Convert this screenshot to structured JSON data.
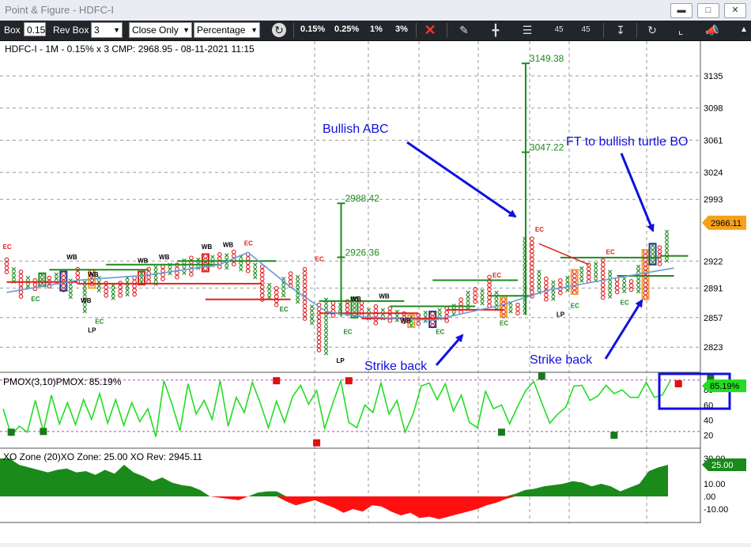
{
  "window": {
    "title": "Point & Figure - HDFC-I"
  },
  "toolbar": {
    "box_label": "Box",
    "box_value": "0.15",
    "revbox_label": "Rev Box",
    "revbox_value": "3",
    "price_mode": "Close Only",
    "scale_mode": "Percentage",
    "pct_buttons": [
      "0.15%",
      "0.25%",
      "1%",
      "3%"
    ],
    "icon_45a": "45",
    "icon_45b": "45"
  },
  "colors": {
    "bull": "#1e8a1e",
    "bear": "#e02020",
    "annotation": "#1010e0",
    "osc": "#22dd22",
    "zone_pos": "#1a8a1a",
    "zone_neg": "#ff1010",
    "ma": "#6c9ad8"
  },
  "chart_data": [
    {
      "type": "point-and-figure",
      "header": "HDFC-I - 1M - 0.15% x 3 CMP: 2968.95 - 08-11-2021 11:15",
      "yticks": [
        3135,
        3098,
        3061,
        3024,
        2993,
        2922,
        2891,
        2857,
        2823
      ],
      "ylim": [
        2795,
        3175
      ],
      "last_price": "2966.11",
      "columns": [
        {
          "t": "O",
          "hi": 2926,
          "lo": 2905
        },
        {
          "t": "X",
          "hi": 2915,
          "lo": 2896
        },
        {
          "t": "O",
          "hi": 2912,
          "lo": 2880
        },
        {
          "t": "X",
          "hi": 2905,
          "lo": 2890
        },
        {
          "t": "O",
          "hi": 2902,
          "lo": 2886
        },
        {
          "t": "X",
          "hi": 2908,
          "lo": 2893
        },
        {
          "t": "O",
          "hi": 2905,
          "lo": 2891
        },
        {
          "t": "X",
          "hi": 2909,
          "lo": 2894
        },
        {
          "t": "O",
          "hi": 2910,
          "lo": 2888
        },
        {
          "t": "X",
          "hi": 2902,
          "lo": 2878
        },
        {
          "t": "O",
          "hi": 2915,
          "lo": 2895
        },
        {
          "t": "X",
          "hi": 2900,
          "lo": 2862
        },
        {
          "t": "O",
          "hi": 2912,
          "lo": 2891
        },
        {
          "t": "X",
          "hi": 2905,
          "lo": 2886
        },
        {
          "t": "O",
          "hi": 2899,
          "lo": 2882
        },
        {
          "t": "X",
          "hi": 2896,
          "lo": 2876
        },
        {
          "t": "O",
          "hi": 2899,
          "lo": 2880
        },
        {
          "t": "X",
          "hi": 2905,
          "lo": 2880
        },
        {
          "t": "O",
          "hi": 2905,
          "lo": 2880
        },
        {
          "t": "X",
          "hi": 2910,
          "lo": 2895
        },
        {
          "t": "O",
          "hi": 2915,
          "lo": 2897
        },
        {
          "t": "X",
          "hi": 2917,
          "lo": 2894
        },
        {
          "t": "O",
          "hi": 2918,
          "lo": 2899
        },
        {
          "t": "X",
          "hi": 2920,
          "lo": 2905
        },
        {
          "t": "O",
          "hi": 2920,
          "lo": 2903
        },
        {
          "t": "X",
          "hi": 2925,
          "lo": 2905
        },
        {
          "t": "O",
          "hi": 2928,
          "lo": 2906
        },
        {
          "t": "X",
          "hi": 2926,
          "lo": 2910
        },
        {
          "t": "O",
          "hi": 2930,
          "lo": 2910
        },
        {
          "t": "X",
          "hi": 2929,
          "lo": 2913
        },
        {
          "t": "O",
          "hi": 2932,
          "lo": 2913
        },
        {
          "t": "X",
          "hi": 2931,
          "lo": 2913
        },
        {
          "t": "O",
          "hi": 2935,
          "lo": 2915
        },
        {
          "t": "X",
          "hi": 2929,
          "lo": 2912
        },
        {
          "t": "O",
          "hi": 2932,
          "lo": 2908
        },
        {
          "t": "X",
          "hi": 2920,
          "lo": 2900
        },
        {
          "t": "O",
          "hi": 2918,
          "lo": 2876
        },
        {
          "t": "X",
          "hi": 2897,
          "lo": 2880
        },
        {
          "t": "O",
          "hi": 2893,
          "lo": 2871
        },
        {
          "t": "X",
          "hi": 2904,
          "lo": 2878
        },
        {
          "t": "O",
          "hi": 2910,
          "lo": 2892
        },
        {
          "t": "X",
          "hi": 2906,
          "lo": 2873
        },
        {
          "t": "O",
          "hi": 2915,
          "lo": 2852
        },
        {
          "t": "X",
          "hi": 2872,
          "lo": 2846
        },
        {
          "t": "O",
          "hi": 2874,
          "lo": 2818
        },
        {
          "t": "X",
          "hi": 2880,
          "lo": 2812
        },
        {
          "t": "O",
          "hi": 2876,
          "lo": 2856
        },
        {
          "t": "X",
          "hi": 2874,
          "lo": 2858
        },
        {
          "t": "O",
          "hi": 2878,
          "lo": 2858
        },
        {
          "t": "X",
          "hi": 2880,
          "lo": 2857
        },
        {
          "t": "O",
          "hi": 2876,
          "lo": 2855
        },
        {
          "t": "X",
          "hi": 2868,
          "lo": 2852
        },
        {
          "t": "O",
          "hi": 2872,
          "lo": 2850
        },
        {
          "t": "X",
          "hi": 2868,
          "lo": 2853
        },
        {
          "t": "O",
          "hi": 2870,
          "lo": 2851
        },
        {
          "t": "X",
          "hi": 2866,
          "lo": 2852
        },
        {
          "t": "O",
          "hi": 2864,
          "lo": 2848
        },
        {
          "t": "X",
          "hi": 2860,
          "lo": 2846
        },
        {
          "t": "O",
          "hi": 2862,
          "lo": 2846
        },
        {
          "t": "X",
          "hi": 2865,
          "lo": 2850
        },
        {
          "t": "O",
          "hi": 2864,
          "lo": 2846
        },
        {
          "t": "X",
          "hi": 2868,
          "lo": 2853
        },
        {
          "t": "O",
          "hi": 2870,
          "lo": 2852
        },
        {
          "t": "X",
          "hi": 2873,
          "lo": 2860
        },
        {
          "t": "O",
          "hi": 2880,
          "lo": 2862
        },
        {
          "t": "X",
          "hi": 2888,
          "lo": 2865
        },
        {
          "t": "O",
          "hi": 2892,
          "lo": 2873
        },
        {
          "t": "X",
          "hi": 2890,
          "lo": 2872
        },
        {
          "t": "O",
          "hi": 2906,
          "lo": 2868
        },
        {
          "t": "X",
          "hi": 2888,
          "lo": 2864
        },
        {
          "t": "O",
          "hi": 2880,
          "lo": 2858
        },
        {
          "t": "X",
          "hi": 2876,
          "lo": 2860
        },
        {
          "t": "O",
          "hi": 2874,
          "lo": 2858
        },
        {
          "t": "X",
          "hi": 2950,
          "lo": 2860
        },
        {
          "t": "O",
          "hi": 2950,
          "lo": 2878
        },
        {
          "t": "X",
          "hi": 2912,
          "lo": 2882
        },
        {
          "t": "O",
          "hi": 2904,
          "lo": 2875
        },
        {
          "t": "X",
          "hi": 2900,
          "lo": 2878
        },
        {
          "t": "O",
          "hi": 2902,
          "lo": 2884
        },
        {
          "t": "X",
          "hi": 2905,
          "lo": 2884
        },
        {
          "t": "O",
          "hi": 2912,
          "lo": 2884
        },
        {
          "t": "X",
          "hi": 2916,
          "lo": 2895
        },
        {
          "t": "O",
          "hi": 2920,
          "lo": 2895
        },
        {
          "t": "X",
          "hi": 2921,
          "lo": 2898
        },
        {
          "t": "O",
          "hi": 2925,
          "lo": 2880
        },
        {
          "t": "X",
          "hi": 2912,
          "lo": 2880
        },
        {
          "t": "O",
          "hi": 2903,
          "lo": 2883
        },
        {
          "t": "X",
          "hi": 2904,
          "lo": 2886
        },
        {
          "t": "O",
          "hi": 2901,
          "lo": 2886
        },
        {
          "t": "X",
          "hi": 2918,
          "lo": 2885
        },
        {
          "t": "O",
          "hi": 2935,
          "lo": 2878
        },
        {
          "t": "X",
          "hi": 2942,
          "lo": 2918
        },
        {
          "t": "O",
          "hi": 2940,
          "lo": 2918
        },
        {
          "t": "X",
          "hi": 2958,
          "lo": 2918
        }
      ],
      "ma_line": [
        [
          0,
          2886
        ],
        [
          10,
          2900
        ],
        [
          20,
          2906
        ],
        [
          30,
          2918
        ],
        [
          34,
          2932
        ],
        [
          40,
          2892
        ],
        [
          45,
          2864
        ],
        [
          50,
          2858
        ],
        [
          60,
          2854
        ],
        [
          70,
          2872
        ],
        [
          76,
          2888
        ],
        [
          84,
          2900
        ],
        [
          94,
          2914
        ]
      ],
      "boxed_columns": [
        {
          "col": 5,
          "color": "#1e8a1e"
        },
        {
          "col": 8,
          "color": "#1e3a8a"
        },
        {
          "col": 12,
          "color": "#f0a030"
        },
        {
          "col": 19,
          "color": "#e02020"
        },
        {
          "col": 28,
          "color": "#e02020"
        },
        {
          "col": 49,
          "color": "#1e8a1e"
        },
        {
          "col": 57,
          "color": "#f0a030"
        },
        {
          "col": 60,
          "color": "#1e3a8a"
        },
        {
          "col": 70,
          "color": "#f0a030"
        },
        {
          "col": 80,
          "color": "#f0a030"
        },
        {
          "col": 90,
          "color": "#f0a030"
        },
        {
          "col": 91,
          "color": "#1e3a8a"
        }
      ],
      "green_levels": [
        {
          "x0": 6,
          "x1": 20,
          "y": 2912
        },
        {
          "x0": 14,
          "x1": 30,
          "y": 2918
        },
        {
          "x0": 24,
          "x1": 38,
          "y": 2922
        },
        {
          "x0": 44,
          "x1": 56,
          "y": 2876
        },
        {
          "x0": 54,
          "x1": 66,
          "y": 2870
        },
        {
          "x0": 60,
          "x1": 72,
          "y": 2900
        },
        {
          "x0": 68,
          "x1": 74,
          "y": 2882
        },
        {
          "x0": 78,
          "x1": 92,
          "y": 2926
        },
        {
          "x0": 86,
          "x1": 94,
          "y": 2905
        },
        {
          "x0": 92,
          "x1": 96,
          "y": 2928
        }
      ],
      "red_levels": [
        {
          "x0": 0,
          "x1": 10,
          "y": 2898
        },
        {
          "x0": 10,
          "x1": 36,
          "y": 2896
        },
        {
          "x0": 28,
          "x1": 40,
          "y": 2878
        },
        {
          "x0": 44,
          "x1": 58,
          "y": 2862
        },
        {
          "x0": 50,
          "x1": 62,
          "y": 2856
        },
        {
          "x0": 62,
          "x1": 70,
          "y": 2866
        }
      ],
      "projections": [
        {
          "label": "2988.42",
          "col": 47,
          "y": 2988.42
        },
        {
          "label": "2926.36",
          "col": 47,
          "y": 2926.36
        },
        {
          "label": "3149.38",
          "col": 73,
          "y": 3149.38
        },
        {
          "label": "3047.22",
          "col": 73,
          "y": 3047.22
        }
      ],
      "labels": [
        {
          "text": "WB",
          "col": 9,
          "y": 2924,
          "color": "#000"
        },
        {
          "text": "WB",
          "col": 12,
          "y": 2904,
          "color": "#000"
        },
        {
          "text": "WB",
          "col": 11,
          "y": 2874,
          "color": "#000"
        },
        {
          "text": "WB",
          "col": 19,
          "y": 2920,
          "color": "#000"
        },
        {
          "text": "WB",
          "col": 22,
          "y": 2924,
          "color": "#000"
        },
        {
          "text": "WB",
          "col": 28,
          "y": 2936,
          "color": "#000"
        },
        {
          "text": "WB",
          "col": 31,
          "y": 2938,
          "color": "#000"
        },
        {
          "text": "WB",
          "col": 49,
          "y": 2876,
          "color": "#000"
        },
        {
          "text": "WB",
          "col": 53,
          "y": 2879,
          "color": "#000"
        },
        {
          "text": "WB",
          "col": 56,
          "y": 2851,
          "color": "#000"
        },
        {
          "text": "EC",
          "col": 4,
          "y": 2876,
          "color": "#1e8a1e"
        },
        {
          "text": "EC",
          "col": 13,
          "y": 2850,
          "color": "#1e8a1e"
        },
        {
          "text": "EC",
          "col": 34,
          "y": 2940,
          "color": "#e02020"
        },
        {
          "text": "EC",
          "col": 39,
          "y": 2864,
          "color": "#1e8a1e"
        },
        {
          "text": "EC",
          "col": 44,
          "y": 2922,
          "color": "#e02020"
        },
        {
          "text": "EC",
          "col": 48,
          "y": 2838,
          "color": "#1e8a1e"
        },
        {
          "text": "EC",
          "col": 61,
          "y": 2838,
          "color": "#1e8a1e"
        },
        {
          "text": "EC",
          "col": 69,
          "y": 2903,
          "color": "#e02020"
        },
        {
          "text": "EC",
          "col": 70,
          "y": 2848,
          "color": "#1e8a1e"
        },
        {
          "text": "EC",
          "col": 75,
          "y": 2956,
          "color": "#e02020"
        },
        {
          "text": "EC",
          "col": 80,
          "y": 2868,
          "color": "#1e8a1e"
        },
        {
          "text": "EC",
          "col": 85,
          "y": 2930,
          "color": "#e02020"
        },
        {
          "text": "EC",
          "col": 87,
          "y": 2872,
          "color": "#1e8a1e"
        },
        {
          "text": "EC",
          "col": 0,
          "y": 2936,
          "color": "#e02020"
        },
        {
          "text": "LP",
          "col": 12,
          "y": 2840,
          "color": "#000"
        },
        {
          "text": "LP",
          "col": 78,
          "y": 2858,
          "color": "#000"
        },
        {
          "text": "LP",
          "col": 47,
          "y": 2805,
          "color": "#000"
        }
      ],
      "trendline": {
        "from": [
          75,
          2942
        ],
        "to": [
          82,
          2918
        ],
        "color": "#e02020"
      },
      "annotations": [
        {
          "text": "Bullish ABC",
          "x": 408,
          "y": 116,
          "arrow_from": [
            515,
            128
          ],
          "arrow_to": [
            652,
            222
          ]
        },
        {
          "text": "FT to bullish turtle BO",
          "x": 716,
          "y": 132,
          "arrow_from": [
            786,
            142
          ],
          "arrow_to": [
            826,
            240
          ]
        },
        {
          "text": "Strike back",
          "x": 461,
          "y": 416,
          "arrow_from": [
            552,
            410
          ],
          "arrow_to": [
            585,
            372
          ]
        },
        {
          "text": "Strike back",
          "x": 670,
          "y": 408,
          "arrow_from": [
            766,
            402
          ],
          "arrow_to": [
            812,
            328
          ]
        }
      ]
    },
    {
      "type": "line",
      "header": "PMOX(3,10)PMOX: 85.19%",
      "yticks": [
        80,
        60,
        40,
        20
      ],
      "ylim": [
        5,
        100
      ],
      "last_value": "85.19%",
      "guides": [
        93,
        25
      ],
      "values": [
        55,
        20,
        32,
        24,
        66,
        25,
        73,
        35,
        63,
        34,
        67,
        41,
        75,
        36,
        67,
        33,
        63,
        38,
        55,
        18,
        92,
        61,
        26,
        88,
        48,
        66,
        41,
        92,
        32,
        70,
        50,
        90,
        62,
        30,
        65,
        37,
        71,
        86,
        61,
        79,
        29,
        62,
        92,
        37,
        30,
        60,
        50,
        89,
        48,
        66,
        24,
        48,
        85,
        89,
        67,
        88,
        52,
        73,
        37,
        30,
        78,
        55,
        60,
        35,
        58,
        79,
        91,
        63,
        36,
        48,
        57,
        85,
        86,
        66,
        72,
        86,
        75,
        80,
        70,
        70,
        90,
        70,
        73,
        92
      ],
      "markers_red": [
        [
          34,
          92
        ],
        [
          39,
          10
        ],
        [
          43,
          92
        ],
        [
          84,
          88
        ]
      ],
      "markers_green": [
        [
          1,
          24
        ],
        [
          5,
          25
        ],
        [
          62,
          24
        ],
        [
          67,
          98
        ],
        [
          76,
          20
        ],
        [
          88,
          95
        ]
      ],
      "highlight_box": {
        "col0": 83,
        "col1": 89
      }
    },
    {
      "type": "area",
      "header": "XO Zone (20)XO Zone: 25.00 XO Rev: 2945.11",
      "yticks": [
        "30.00",
        "10.00",
        ".00",
        "-10.00"
      ],
      "ylim": [
        -20,
        35
      ],
      "last_value": "25.00",
      "values": [
        30,
        30,
        25,
        23,
        21,
        19,
        21,
        22,
        19,
        20,
        17,
        21,
        18,
        25,
        19,
        16,
        12,
        15,
        11,
        9,
        8,
        5,
        0,
        -1,
        -2,
        -3,
        0,
        3,
        4,
        4,
        -4,
        -7,
        -5,
        -3,
        -6,
        -9,
        -13,
        -10,
        -12,
        -7,
        -8,
        -12,
        -15,
        -13,
        -17,
        -16,
        -18,
        -16,
        -14,
        -12,
        -10,
        -7,
        -5,
        -2,
        2,
        5,
        6,
        8,
        9,
        10,
        12,
        11,
        8,
        10,
        8,
        4,
        7,
        10,
        20,
        23,
        25
      ]
    }
  ]
}
